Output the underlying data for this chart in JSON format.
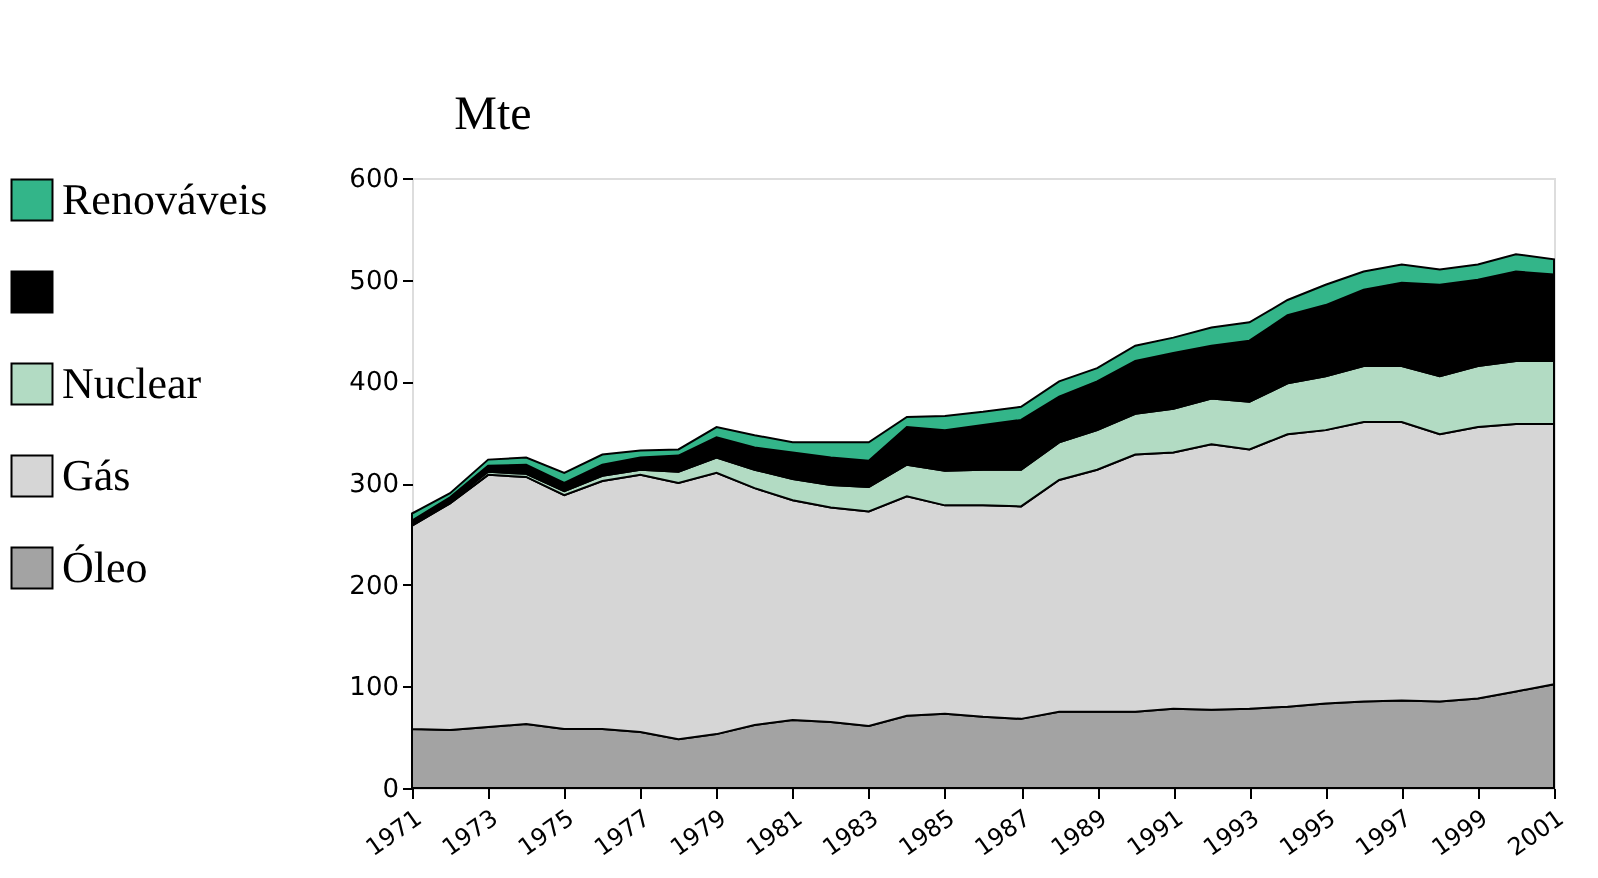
{
  "chart_data": {
    "type": "area",
    "stacked": true,
    "ylabel": "Mte",
    "x": [
      1971,
      1972,
      1973,
      1974,
      1975,
      1976,
      1977,
      1978,
      1979,
      1980,
      1981,
      1982,
      1983,
      1984,
      1985,
      1986,
      1987,
      1988,
      1989,
      1990,
      1991,
      1992,
      1993,
      1994,
      1995,
      1996,
      1997,
      1998,
      1999,
      2000,
      2001
    ],
    "series": [
      {
        "name": "Óleo",
        "color": "#a3a3a3",
        "values": [
          58,
          57,
          60,
          63,
          58,
          58,
          55,
          48,
          53,
          62,
          67,
          65,
          61,
          71,
          73,
          70,
          68,
          75,
          75,
          75,
          78,
          77,
          78,
          80,
          83,
          85,
          86,
          85,
          88,
          95,
          102
        ]
      },
      {
        "name": "Gás",
        "color": "#d6d6d6",
        "values": [
          200,
          223,
          248,
          243,
          230,
          244,
          253,
          252,
          257,
          233,
          216,
          211,
          211,
          216,
          205,
          208,
          209,
          228,
          238,
          253,
          252,
          261,
          255,
          268,
          269,
          275,
          274,
          263,
          267,
          263,
          256
        ]
      },
      {
        "name": "Nuclear",
        "color": "#b2dbc3",
        "values": [
          2,
          2,
          3,
          3,
          4,
          5,
          5,
          11,
          15,
          18,
          21,
          22,
          24,
          31,
          34,
          35,
          36,
          37,
          39,
          40,
          43,
          45,
          47,
          50,
          53,
          55,
          55,
          57,
          60,
          62,
          62
        ]
      },
      {
        "color": "#000000",
        "values": [
          3,
          4,
          6,
          9,
          8,
          11,
          12,
          16,
          20,
          22,
          26,
          27,
          26,
          37,
          40,
          44,
          49,
          45,
          48,
          52,
          55,
          52,
          60,
          67,
          70,
          75,
          82,
          90,
          85,
          88,
          85
        ]
      },
      {
        "name": "Renováveis",
        "color": "#33b589",
        "values": [
          7,
          4,
          6,
          7,
          10,
          10,
          7,
          6,
          10,
          12,
          10,
          15,
          18,
          10,
          14,
          13,
          13,
          15,
          13,
          15,
          15,
          18,
          18,
          15,
          20,
          18,
          18,
          15,
          15,
          17,
          15
        ]
      }
    ],
    "xlim": [
      1971,
      2001
    ],
    "xticks": [
      1971,
      1973,
      1975,
      1977,
      1979,
      1981,
      1983,
      1985,
      1987,
      1989,
      1991,
      1993,
      1995,
      1997,
      1999,
      2001
    ],
    "ylim": [
      0,
      600
    ],
    "yticks": [
      0,
      100,
      200,
      300,
      400,
      500,
      600
    ],
    "grid": false,
    "legend": "left"
  }
}
